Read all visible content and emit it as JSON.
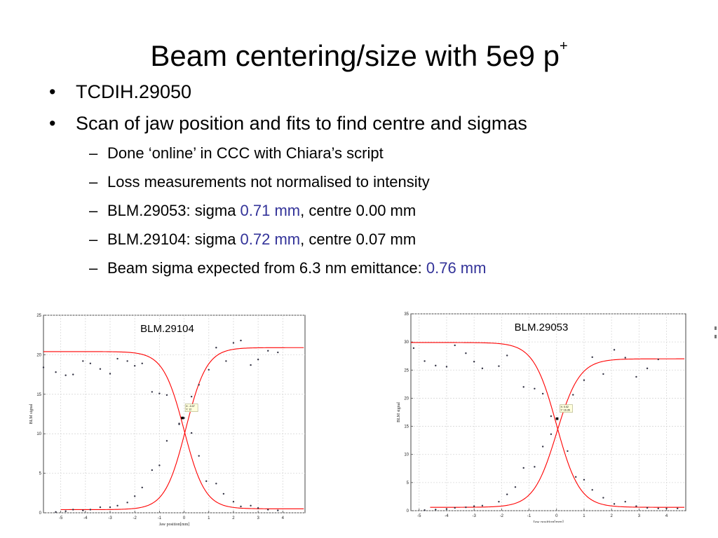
{
  "slide": {
    "title": "Beam centering/size with 5e9 p",
    "title_sup": "+",
    "bullets": [
      {
        "text": "TCDIH.29050"
      },
      {
        "text": "Scan of jaw position and fits to find centre and sigmas"
      }
    ],
    "subbullets": [
      {
        "text": "Done ‘online’ in CCC with Chiara’s script"
      },
      {
        "text": "Loss measurements not normalised to intensity"
      },
      {
        "prefix": "BLM.29053: sigma ",
        "highlight": "0.71 mm",
        "suffix": ", centre 0.00 mm"
      },
      {
        "prefix": "BLM.29104: sigma ",
        "highlight": "0.72 mm",
        "suffix": ", centre 0.07 mm"
      },
      {
        "prefix": "Beam sigma expected from 6.3 nm emittance: ",
        "highlight": "0.76 mm",
        "suffix": ""
      }
    ],
    "bullet_symbol": "•",
    "sub_bullet_symbol": "–"
  },
  "colors": {
    "highlight": "#333399",
    "fit_curve": "#ff0000",
    "points": "#333344",
    "grid": "#d8d8d8"
  },
  "chart_data": [
    {
      "type": "scatter",
      "annotation": "BLM.29104",
      "xlabel": "Jaw position[mm]",
      "ylabel": "BLM signal",
      "xlim": [
        -5.7,
        4.9
      ],
      "ylim": [
        0,
        25
      ],
      "xticks": [
        -5,
        -4,
        -3,
        -2,
        -1,
        0,
        1,
        2,
        3,
        4
      ],
      "yticks": [
        0,
        5,
        10,
        15,
        20,
        25
      ],
      "grid": true,
      "datatip": [
        "X: -0.07",
        "Y: 12"
      ],
      "datatip_point": [
        -0.07,
        12
      ],
      "series": [
        {
          "x": [
            -5.7,
            -5.2,
            -4.8,
            -4.5,
            -4.1,
            -3.8,
            -3.4,
            -3.0,
            -2.7,
            -2.3,
            -2.0,
            -1.7,
            -1.3,
            -1.0,
            -0.7,
            -0.2,
            0.0,
            0.3,
            0.6,
            0.9,
            1.3,
            1.6,
            2.0,
            2.3,
            2.7,
            3.0,
            3.4,
            3.8
          ],
          "y": [
            18.4,
            17.8,
            17.4,
            17.5,
            19.2,
            18.9,
            18.2,
            17.6,
            19.5,
            19.2,
            18.6,
            18.9,
            15.3,
            15.1,
            14.9,
            11.2,
            12.0,
            10.1,
            7.2,
            4.0,
            3.7,
            2.4,
            1.4,
            0.8,
            0.9,
            0.6,
            0.4,
            0.3
          ]
        },
        {
          "x": [
            -5.2,
            -4.8,
            -4.5,
            -4.1,
            -3.8,
            -3.4,
            -3.0,
            -2.7,
            -2.3,
            -2.0,
            -1.7,
            -1.3,
            -1.0,
            -0.7,
            -0.2,
            0.0,
            0.3,
            0.6,
            1.0,
            1.3,
            1.7,
            2.0,
            2.3,
            2.7,
            3.0,
            3.4,
            3.8
          ],
          "y": [
            0.1,
            0.2,
            0.4,
            0.3,
            0.4,
            0.7,
            0.7,
            0.9,
            1.3,
            2.1,
            3.2,
            5.4,
            6.0,
            9.1,
            11.3,
            12.0,
            14.7,
            16.2,
            18.1,
            20.9,
            19.2,
            21.5,
            21.8,
            18.7,
            19.4,
            20.5,
            20.3
          ]
        }
      ],
      "fits": [
        {
          "name": "falling",
          "amplitude": 19.9,
          "baseline": 0.5,
          "centre": 0.0,
          "width": 0.72
        },
        {
          "name": "rising",
          "amplitude": 20.5,
          "baseline": 0.4,
          "centre": 0.07,
          "width": 0.72
        }
      ]
    },
    {
      "type": "scatter",
      "annotation": "BLM.29053",
      "xlabel": "Jaw position[mm]",
      "ylabel": "BLM signal",
      "xlim": [
        -5.3,
        4.7
      ],
      "ylim": [
        0,
        35
      ],
      "xticks": [
        -5,
        -4,
        -3,
        -2,
        -1,
        0,
        1,
        2,
        3,
        4
      ],
      "yticks": [
        0,
        5,
        10,
        15,
        20,
        25,
        30,
        35
      ],
      "grid": true,
      "datatip": [
        "X: 0.02",
        "Y: 16.36"
      ],
      "datatip_point": [
        0.02,
        16.36
      ],
      "series": [
        {
          "x": [
            -5.2,
            -4.8,
            -4.4,
            -4.0,
            -3.7,
            -3.3,
            -3.0,
            -2.7,
            -2.1,
            -1.8,
            -1.2,
            -0.8,
            -0.5,
            -0.2,
            0.0,
            0.4,
            0.7,
            1.0,
            1.3,
            1.7,
            2.1,
            2.5,
            2.9,
            3.3,
            3.7,
            4.0,
            4.4
          ],
          "y": [
            28.9,
            26.6,
            25.8,
            25.6,
            29.4,
            28.0,
            26.5,
            25.3,
            25.7,
            27.6,
            22.0,
            21.7,
            20.8,
            16.8,
            16.4,
            10.6,
            6.0,
            5.5,
            3.7,
            2.3,
            1.2,
            1.6,
            0.8,
            0.5,
            0.4,
            0.4,
            0.4
          ]
        },
        {
          "x": [
            -4.8,
            -4.4,
            -4.0,
            -3.7,
            -3.3,
            -3.0,
            -2.7,
            -2.1,
            -1.8,
            -1.5,
            -1.2,
            -0.8,
            -0.5,
            -0.2,
            0.0,
            0.3,
            0.6,
            1.0,
            1.3,
            1.7,
            2.1,
            2.5,
            2.9,
            3.3,
            3.7
          ],
          "y": [
            0.1,
            0.2,
            0.3,
            0.5,
            0.6,
            0.8,
            0.9,
            1.6,
            2.9,
            4.2,
            7.6,
            7.8,
            11.4,
            13.6,
            16.4,
            18.6,
            20.6,
            23.2,
            27.3,
            24.3,
            28.6,
            27.2,
            23.8,
            25.3,
            26.9
          ]
        }
      ],
      "fits": [
        {
          "name": "falling",
          "amplitude": 29.3,
          "baseline": 0.6,
          "centre": 0.0,
          "width": 0.71
        },
        {
          "name": "rising",
          "amplitude": 26.4,
          "baseline": 0.6,
          "centre": 0.0,
          "width": 0.71
        }
      ]
    }
  ]
}
